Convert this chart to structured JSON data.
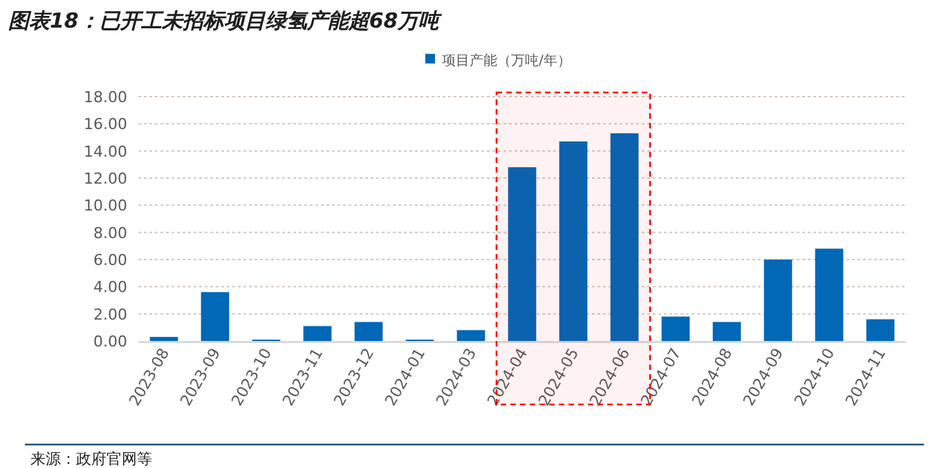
{
  "chart_data": {
    "type": "bar",
    "title": "图表18：已开工未招标项目绿氢产能超68万吨",
    "categories": [
      "2023-08",
      "2023-09",
      "2023-10",
      "2023-11",
      "2023-12",
      "2024-01",
      "2024-03",
      "2024-04",
      "2024-05",
      "2024-06",
      "2024-07",
      "2024-08",
      "2024-09",
      "2024-10",
      "2024-11"
    ],
    "series": [
      {
        "name": "项目产能（万吨/年）",
        "color": "#0068b7",
        "values": [
          0.3,
          3.6,
          0.1,
          1.1,
          1.4,
          0.1,
          0.8,
          12.8,
          14.7,
          15.3,
          1.8,
          1.4,
          6.0,
          6.8,
          1.6
        ]
      }
    ],
    "ylim": [
      0,
      18
    ],
    "yticks": [
      {
        "value": 0,
        "label": "0.00"
      },
      {
        "value": 2,
        "label": "2.00"
      },
      {
        "value": 4,
        "label": "4.00"
      },
      {
        "value": 6,
        "label": "6.00"
      },
      {
        "value": 8,
        "label": "8.00"
      },
      {
        "value": 10,
        "label": "10.00"
      },
      {
        "value": 12,
        "label": "12.00"
      },
      {
        "value": 14,
        "label": "14.00"
      },
      {
        "value": 16,
        "label": "16.00"
      },
      {
        "value": 18,
        "label": "18.00"
      }
    ],
    "grid": "y",
    "legend": "top",
    "bands": [
      {
        "axis": "x",
        "from": "2024-04",
        "to": "2024-06",
        "color": "#ff0000"
      }
    ],
    "annotations": [
      "来源：政府官网等"
    ]
  }
}
